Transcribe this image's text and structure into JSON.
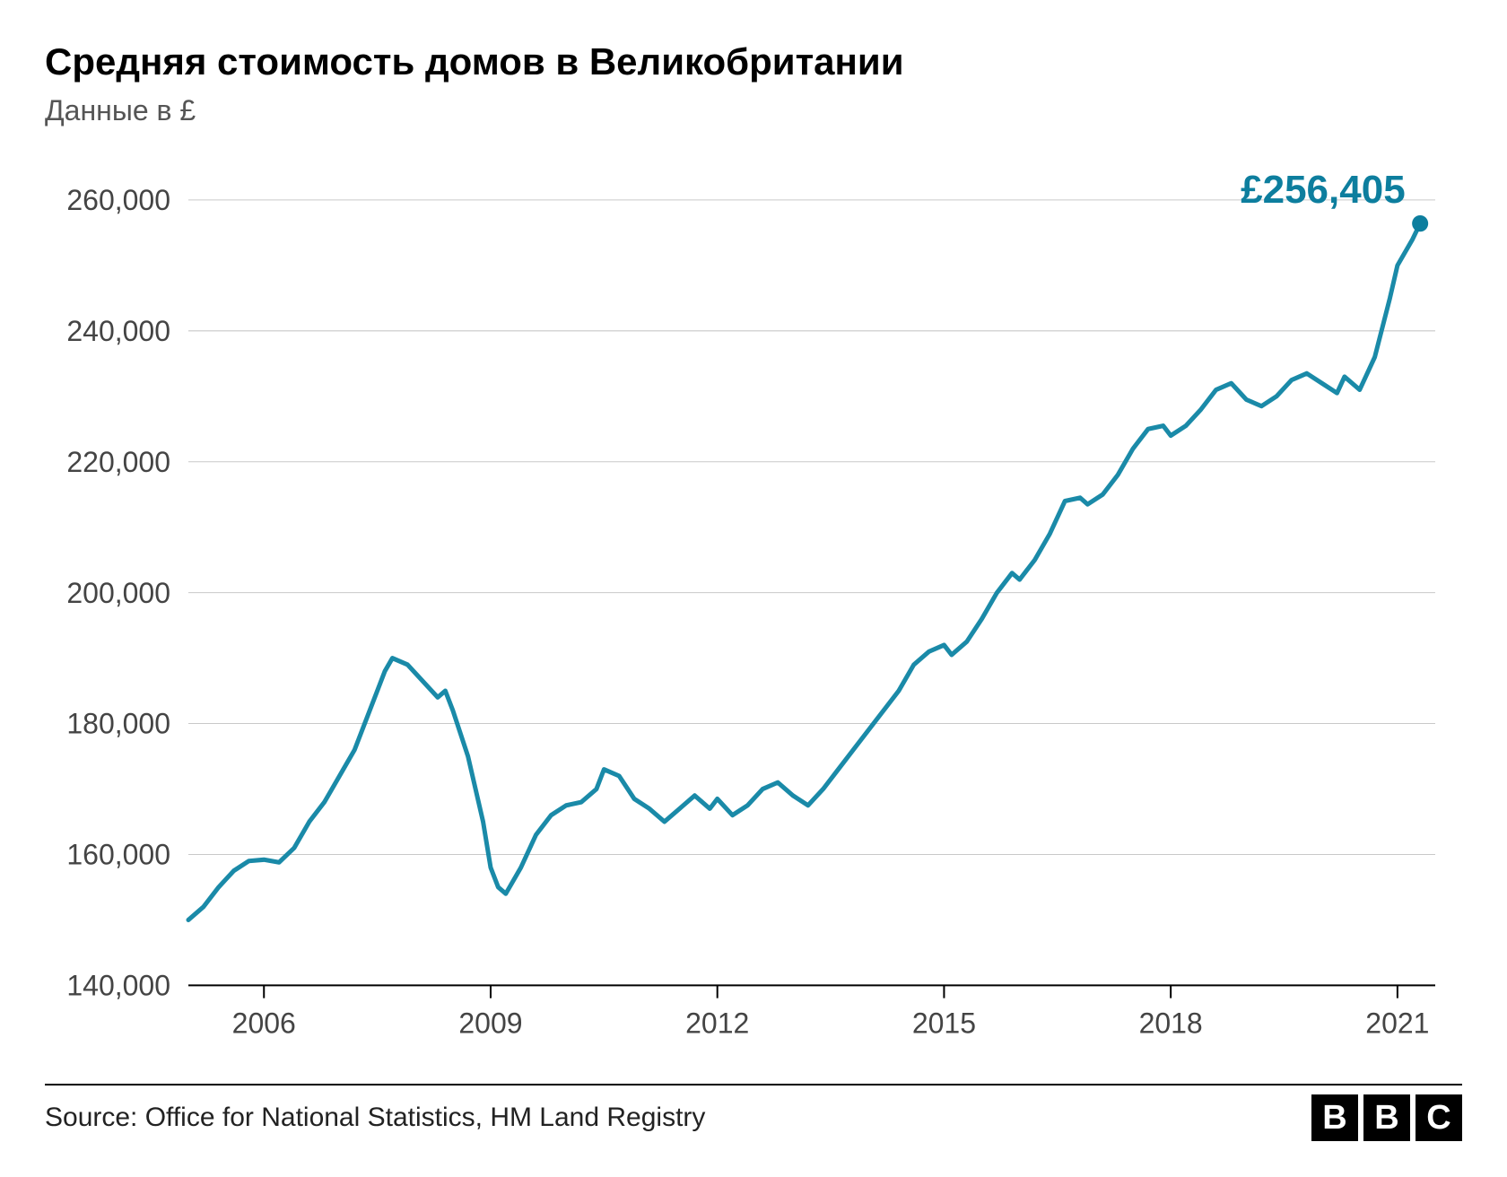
{
  "title": "Средняя стоимость домов в Великобритании",
  "subtitle": "Данные в £",
  "source": "Source: Office for National Statistics, HM Land Registry",
  "logo_letters": [
    "B",
    "B",
    "C"
  ],
  "annotation": {
    "text": "£256,405",
    "color": "#0d7e9e",
    "fontsize": 44
  },
  "chart": {
    "type": "line",
    "background_color": "#ffffff",
    "line_color": "#1a8aa8",
    "line_width": 5,
    "marker_color": "#0d7e9e",
    "marker_radius": 9,
    "grid_color": "#c9c9c9",
    "axis_color": "#000000",
    "axis_label_color": "#444444",
    "axis_label_fontsize": 32,
    "ylim": [
      140000,
      260000
    ],
    "ytick_step": 20000,
    "yticks": [
      140000,
      160000,
      180000,
      200000,
      220000,
      240000,
      260000
    ],
    "ytick_labels": [
      "140,000",
      "160,000",
      "180,000",
      "200,000",
      "220,000",
      "240,000",
      "260,000"
    ],
    "xlim": [
      2005,
      2021.5
    ],
    "xticks": [
      2006,
      2009,
      2012,
      2015,
      2018,
      2021
    ],
    "xtick_labels": [
      "2006",
      "2009",
      "2012",
      "2015",
      "2018",
      "2021"
    ],
    "data": [
      [
        2005.0,
        150000
      ],
      [
        2005.2,
        152000
      ],
      [
        2005.4,
        155000
      ],
      [
        2005.6,
        157500
      ],
      [
        2005.8,
        159000
      ],
      [
        2006.0,
        159200
      ],
      [
        2006.2,
        158800
      ],
      [
        2006.4,
        161000
      ],
      [
        2006.6,
        165000
      ],
      [
        2006.8,
        168000
      ],
      [
        2007.0,
        172000
      ],
      [
        2007.2,
        176000
      ],
      [
        2007.4,
        182000
      ],
      [
        2007.6,
        188000
      ],
      [
        2007.7,
        190000
      ],
      [
        2007.9,
        189000
      ],
      [
        2008.1,
        186500
      ],
      [
        2008.3,
        184000
      ],
      [
        2008.4,
        185000
      ],
      [
        2008.5,
        182000
      ],
      [
        2008.7,
        175000
      ],
      [
        2008.9,
        165000
      ],
      [
        2009.0,
        158000
      ],
      [
        2009.1,
        155000
      ],
      [
        2009.2,
        154000
      ],
      [
        2009.4,
        158000
      ],
      [
        2009.6,
        163000
      ],
      [
        2009.8,
        166000
      ],
      [
        2010.0,
        167500
      ],
      [
        2010.2,
        168000
      ],
      [
        2010.4,
        170000
      ],
      [
        2010.5,
        173000
      ],
      [
        2010.7,
        172000
      ],
      [
        2010.9,
        168500
      ],
      [
        2011.1,
        167000
      ],
      [
        2011.3,
        165000
      ],
      [
        2011.5,
        167000
      ],
      [
        2011.7,
        169000
      ],
      [
        2011.9,
        167000
      ],
      [
        2012.0,
        168500
      ],
      [
        2012.2,
        166000
      ],
      [
        2012.4,
        167500
      ],
      [
        2012.6,
        170000
      ],
      [
        2012.8,
        171000
      ],
      [
        2013.0,
        169000
      ],
      [
        2013.2,
        167500
      ],
      [
        2013.4,
        170000
      ],
      [
        2013.6,
        173000
      ],
      [
        2013.8,
        176000
      ],
      [
        2014.0,
        179000
      ],
      [
        2014.2,
        182000
      ],
      [
        2014.4,
        185000
      ],
      [
        2014.6,
        189000
      ],
      [
        2014.8,
        191000
      ],
      [
        2015.0,
        192000
      ],
      [
        2015.1,
        190500
      ],
      [
        2015.3,
        192500
      ],
      [
        2015.5,
        196000
      ],
      [
        2015.7,
        200000
      ],
      [
        2015.9,
        203000
      ],
      [
        2016.0,
        202000
      ],
      [
        2016.2,
        205000
      ],
      [
        2016.4,
        209000
      ],
      [
        2016.6,
        214000
      ],
      [
        2016.8,
        214500
      ],
      [
        2016.9,
        213500
      ],
      [
        2017.1,
        215000
      ],
      [
        2017.3,
        218000
      ],
      [
        2017.5,
        222000
      ],
      [
        2017.7,
        225000
      ],
      [
        2017.9,
        225500
      ],
      [
        2018.0,
        224000
      ],
      [
        2018.2,
        225500
      ],
      [
        2018.4,
        228000
      ],
      [
        2018.6,
        231000
      ],
      [
        2018.8,
        232000
      ],
      [
        2019.0,
        229500
      ],
      [
        2019.2,
        228500
      ],
      [
        2019.4,
        230000
      ],
      [
        2019.6,
        232500
      ],
      [
        2019.8,
        233500
      ],
      [
        2020.0,
        232000
      ],
      [
        2020.2,
        230500
      ],
      [
        2020.3,
        233000
      ],
      [
        2020.5,
        231000
      ],
      [
        2020.7,
        236000
      ],
      [
        2020.9,
        245000
      ],
      [
        2021.0,
        250000
      ],
      [
        2021.2,
        254000
      ],
      [
        2021.3,
        256405
      ]
    ],
    "end_point": [
      2021.3,
      256405
    ]
  }
}
